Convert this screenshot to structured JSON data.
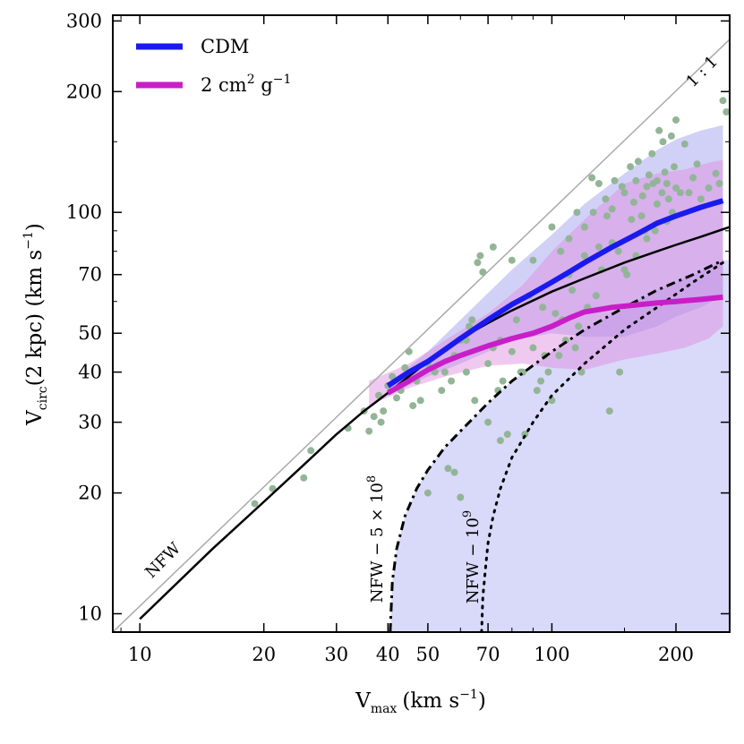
{
  "chart_data": {
    "type": "scatter",
    "x_scale": "log",
    "y_scale": "log",
    "xlim": [
      8.6,
      270
    ],
    "ylim": [
      9,
      310
    ],
    "xlabel_main": "V",
    "xlabel_sub": "max",
    "xlabel_unit": "(km s",
    "xlabel_unit_exp": "−1",
    "xlabel_close": ")",
    "ylabel_main": "V",
    "ylabel_sub": "circ",
    "ylabel_arg": "(2 kpc) (km s",
    "ylabel_unit_exp": "−1",
    "ylabel_close": ")",
    "x_ticks": [
      10,
      20,
      30,
      40,
      50,
      70,
      100,
      200
    ],
    "y_ticks": [
      10,
      20,
      30,
      40,
      50,
      70,
      100,
      200,
      300
    ],
    "x_tick_labels": [
      "10",
      "20",
      "30",
      "40",
      "50",
      "70",
      "100",
      "200"
    ],
    "y_tick_labels": [
      "10",
      "20",
      "30",
      "40",
      "50",
      "70",
      "100",
      "200",
      "300"
    ],
    "grid": false,
    "legend": {
      "placement": "top-left",
      "entries": [
        {
          "label": "CDM",
          "color": "#1a1aee"
        },
        {
          "label_base": "2 cm",
          "label_exp1": "2",
          "label_mid": " g",
          "label_exp2": "−1",
          "color": "#c81ec8"
        }
      ]
    },
    "annotations": {
      "one_to_one": "1 : 1",
      "nfw": "NFW",
      "nfw_5e8_base": "NFW − 5 × 10",
      "nfw_5e8_exp": "8",
      "nfw_1e9_base": "NFW − 10",
      "nfw_1e9_exp": "9"
    },
    "colors": {
      "cdm": "#1a1aee",
      "sidm": "#c81ec8",
      "cdm_band": "#9999ee",
      "sidm_band": "#dd88dd",
      "points": "#93b597",
      "nfw": "#000000",
      "one_to_one": "#aaaaaa",
      "region": "#ccccf7"
    },
    "series": {
      "one_to_one": {
        "x": [
          8.6,
          270
        ],
        "y": [
          8.6,
          270
        ]
      },
      "nfw_median": {
        "x": [
          10,
          15,
          20,
          25,
          30,
          35,
          40,
          50,
          60,
          70,
          80,
          100,
          120,
          150,
          180,
          200,
          230,
          270
        ],
        "y": [
          9.7,
          14.5,
          19,
          23.5,
          28,
          32,
          35.5,
          42.5,
          48.5,
          53,
          57,
          63.5,
          68.5,
          75,
          80,
          83,
          87,
          92
        ]
      },
      "cdm": {
        "x": [
          40,
          45,
          50,
          55,
          60,
          70,
          80,
          90,
          100,
          110,
          120,
          140,
          160,
          180,
          200,
          230,
          260
        ],
        "y": [
          37,
          40,
          42.5,
          45.5,
          48.5,
          54,
          59,
          63,
          67,
          71,
          75,
          82,
          88,
          94,
          98,
          103,
          107
        ]
      },
      "sidm": {
        "x": [
          40,
          45,
          50,
          55,
          60,
          70,
          80,
          90,
          100,
          110,
          120,
          140,
          160,
          180,
          200,
          230,
          260
        ],
        "y": [
          35.5,
          38,
          40.5,
          42.5,
          44,
          46.5,
          48.5,
          50,
          52,
          54.5,
          56.5,
          58,
          58.8,
          59.5,
          60,
          60.7,
          61.5
        ]
      },
      "cdm_band_upper": {
        "x": [
          40,
          50,
          60,
          70,
          80,
          100,
          120,
          150,
          180,
          200,
          230,
          260
        ],
        "y": [
          37.5,
          45,
          54,
          63,
          72,
          88,
          105,
          125,
          143,
          152,
          160,
          165
        ]
      },
      "cdm_band_lower": {
        "x": [
          40,
          50,
          60,
          70,
          80,
          100,
          120,
          150,
          180,
          200,
          230,
          260
        ],
        "y": [
          35,
          39,
          42,
          45,
          48,
          50,
          49,
          49,
          52,
          55,
          58,
          62
        ]
      },
      "sidm_band_upper": {
        "x": [
          36,
          45,
          55,
          70,
          85,
          100,
          120,
          150,
          180,
          210,
          240,
          260
        ],
        "y": [
          38,
          42,
          48,
          56,
          66,
          80,
          96,
          118,
          125,
          128,
          133,
          135
        ]
      },
      "sidm_band_lower": {
        "x": [
          36,
          45,
          55,
          70,
          85,
          100,
          120,
          150,
          180,
          210,
          240,
          260
        ],
        "y": [
          33,
          36.5,
          39,
          41.5,
          42,
          41,
          40.5,
          43,
          44.5,
          46,
          48.5,
          52
        ]
      },
      "nfw_minus_5e8": {
        "x": [
          40.5,
          41,
          42,
          44,
          47,
          50,
          55,
          60,
          70,
          80,
          100,
          120,
          150,
          180,
          220,
          260
        ],
        "y": [
          9,
          12,
          14.5,
          17.5,
          20.5,
          22.8,
          26,
          28.5,
          33.5,
          38,
          45,
          51,
          58,
          64,
          70,
          76
        ]
      },
      "nfw_minus_1e9": {
        "x": [
          67.5,
          68,
          69,
          70,
          72,
          75,
          80,
          90,
          100,
          120,
          150,
          180,
          220,
          260
        ],
        "y": [
          9,
          11,
          13,
          15,
          17.5,
          20.5,
          24.5,
          30,
          35,
          42,
          51,
          58,
          67,
          75
        ]
      },
      "points": {
        "x": [
          19,
          21,
          25,
          26,
          32,
          35,
          36,
          37,
          38,
          38.5,
          39,
          40,
          41,
          42,
          43,
          44,
          45,
          46,
          47,
          48,
          50,
          50,
          52,
          54,
          55,
          56,
          57,
          58,
          58,
          60,
          60,
          62,
          62,
          63,
          64,
          65,
          66,
          67,
          68,
          70,
          70,
          72,
          72,
          74,
          75,
          75,
          76,
          78,
          80,
          80,
          82,
          84,
          85,
          86,
          88,
          90,
          90,
          92,
          94,
          95,
          96,
          98,
          100,
          100,
          102,
          104,
          105,
          106,
          108,
          110,
          110,
          112,
          114,
          115,
          116,
          118,
          120,
          120,
          122,
          125,
          126,
          128,
          130,
          130,
          132,
          135,
          136,
          138,
          140,
          140,
          142,
          145,
          146,
          148,
          150,
          150,
          152,
          155,
          156,
          158,
          160,
          160,
          162,
          165,
          166,
          168,
          170,
          170,
          172,
          175,
          176,
          178,
          180,
          180,
          182,
          185,
          186,
          188,
          190,
          190,
          192,
          195,
          196,
          198,
          200,
          200,
          205,
          210,
          215,
          220,
          225,
          230,
          240,
          250,
          255,
          260,
          265
        ],
        "y": [
          18.8,
          20.5,
          21.8,
          25.5,
          29,
          32,
          28.5,
          31,
          35,
          30,
          32,
          37,
          39,
          34.5,
          36,
          41,
          45,
          33,
          38,
          34,
          20,
          42,
          40,
          36,
          40,
          23,
          38,
          22.5,
          44,
          19.5,
          48,
          48,
          40,
          52,
          54,
          34,
          75,
          78,
          71,
          42,
          30,
          82,
          46,
          36,
          48,
          27,
          38,
          28,
          76,
          45,
          54,
          40,
          40,
          28,
          62,
          76,
          46,
          36,
          38,
          58,
          44,
          40,
          34,
          92,
          56,
          44,
          80,
          54,
          48,
          70,
          86,
          64,
          46,
          100,
          52,
          40,
          78,
          92,
          58,
          122,
          100,
          62,
          82,
          118,
          72,
          108,
          98,
          32,
          84,
          102,
          120,
          80,
          40,
          116,
          72,
          112,
          70,
          130,
          96,
          106,
          120,
          78,
          134,
          98,
          110,
          90,
          116,
          86,
          124,
          140,
          118,
          90,
          105,
          120,
          160,
          112,
          150,
          126,
          118,
          95,
          108,
          155,
          100,
          130,
          170,
          115,
          112,
          148,
          112,
          122,
          132,
          108,
          115,
          125,
          118,
          190,
          178
        ]
      }
    }
  }
}
